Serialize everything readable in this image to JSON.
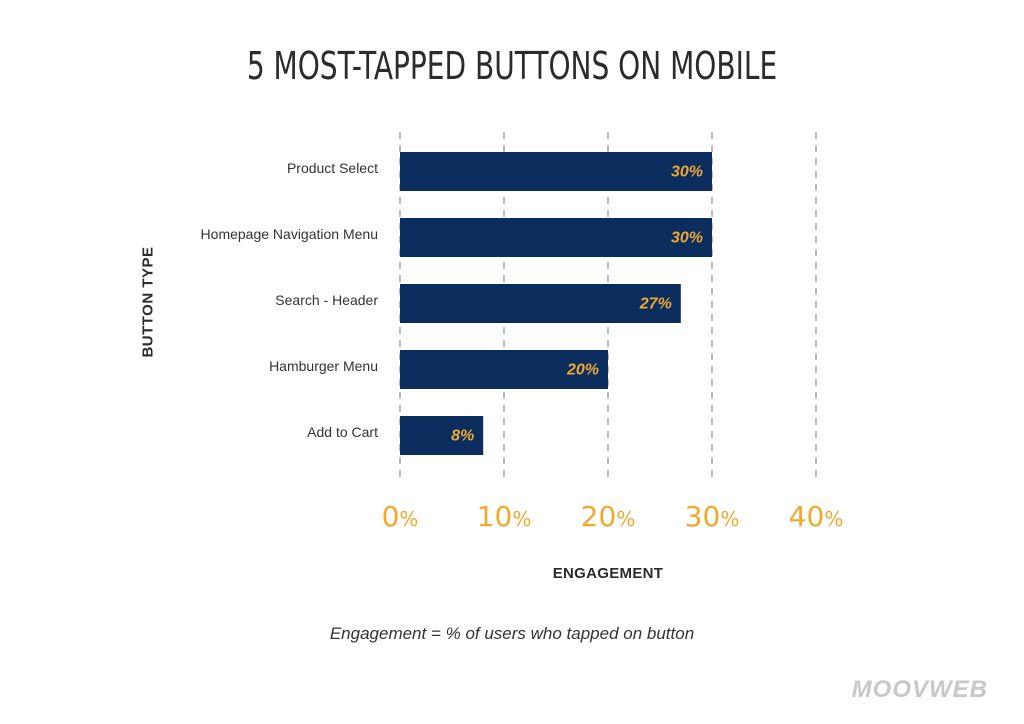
{
  "title": "5 MOST-TAPPED BUTTONS ON MOBILE",
  "footnote": "Engagement = % of users who tapped on button",
  "logo_text": "MOOVWEB",
  "colors": {
    "bar": "#0b2d5e",
    "value_label": "#f0a830",
    "tick_label": "#f0a830",
    "grid": "#999999"
  },
  "chart_data": {
    "type": "bar",
    "orientation": "horizontal",
    "categories": [
      "Product Select",
      "Homepage Navigation Menu",
      "Search - Header",
      "Hamburger Menu",
      "Add to Cart"
    ],
    "values": [
      30,
      30,
      27,
      20,
      8
    ],
    "value_labels": [
      "30%",
      "30%",
      "27%",
      "20%",
      "8%"
    ],
    "xlabel": "ENGAGEMENT",
    "ylabel": "BUTTON TYPE",
    "xlim": [
      0,
      40
    ],
    "xticks": [
      0,
      10,
      20,
      30,
      40
    ],
    "xtick_unit": "%",
    "grid": "vertical dashed"
  }
}
